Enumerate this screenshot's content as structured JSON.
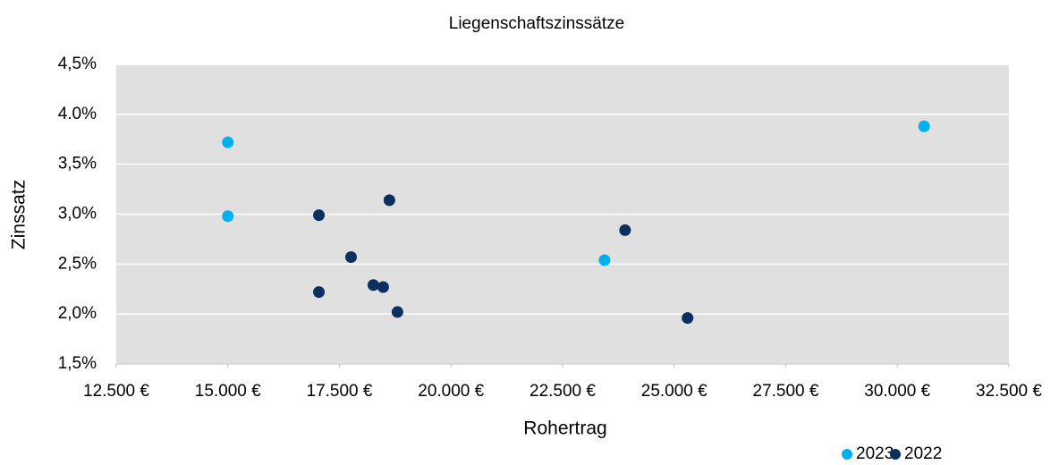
{
  "chart_data": {
    "type": "scatter",
    "title": "Liegenschaftszinssätze",
    "xlabel": "Rohertrag",
    "ylabel": "Zinssatz",
    "xlim": [
      12500,
      32500
    ],
    "xticks": [
      {
        "value": 12500,
        "label": "12.500 €"
      },
      {
        "value": 15000,
        "label": "15.000 €"
      },
      {
        "value": 17500,
        "label": "17.500 €"
      },
      {
        "value": 20000,
        "label": "20.000 €"
      },
      {
        "value": 22500,
        "label": "22.500 €"
      },
      {
        "value": 25000,
        "label": "25.000 €"
      },
      {
        "value": 27500,
        "label": "27.500 €"
      },
      {
        "value": 30000,
        "label": "30.000 €"
      },
      {
        "value": 32500,
        "label": "32.500 €"
      }
    ],
    "ylim": [
      1.5,
      4.5
    ],
    "yticks": [
      {
        "value": 1.5,
        "label": "1,5%"
      },
      {
        "value": 2.0,
        "label": "2,0%"
      },
      {
        "value": 2.5,
        "label": "2,5%"
      },
      {
        "value": 3.0,
        "label": "3,0%"
      },
      {
        "value": 3.5,
        "label": "3,5%"
      },
      {
        "value": 4.0,
        "label": "4.0%"
      },
      {
        "value": 4.5,
        "label": "4,5%"
      }
    ],
    "grid": true,
    "legend": "bottom-right",
    "series": [
      {
        "name": "2023",
        "color": "#00b0f0",
        "x": [
          15000,
          15000,
          23440,
          30600
        ],
        "values": [
          3.72,
          2.98,
          2.54,
          3.88
        ]
      },
      {
        "name": "2022",
        "color": "#0b2f5e",
        "x": [
          17040,
          18620,
          17760,
          17040,
          18260,
          18480,
          18800,
          23900,
          25300
        ],
        "values": [
          2.99,
          3.14,
          2.57,
          2.22,
          2.29,
          2.27,
          2.02,
          2.84,
          1.96
        ]
      }
    ]
  }
}
